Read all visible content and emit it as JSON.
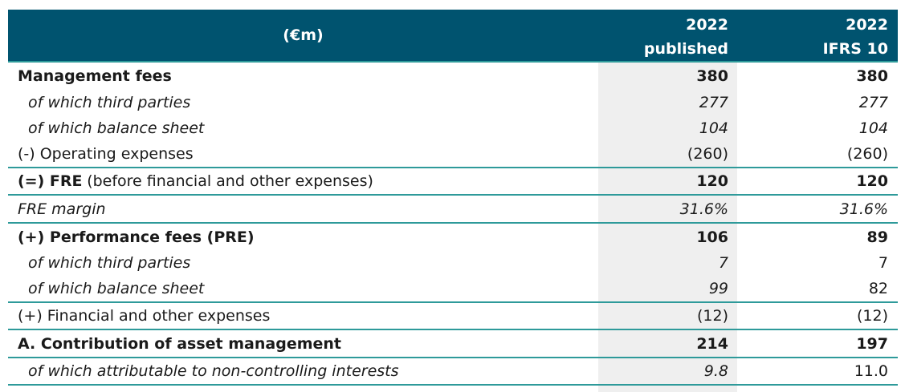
{
  "table": {
    "header": {
      "unit": "(€m)",
      "columns": [
        [
          "2022",
          "published"
        ],
        [
          "2022",
          "IFRS 10"
        ]
      ]
    },
    "rows": [
      {
        "label": "Management fees",
        "values": [
          "380",
          "380"
        ]
      },
      {
        "label": "of which third parties",
        "values": [
          "277",
          "277"
        ]
      },
      {
        "label": "of which balance sheet",
        "values": [
          "104",
          "104"
        ]
      },
      {
        "label": "(-) Operating expenses",
        "values": [
          "(260)",
          "(260)"
        ]
      },
      {
        "label_bold": "(=) FRE",
        "label": "(before financial and other expenses)",
        "values": [
          "120",
          "120"
        ]
      },
      {
        "label": "FRE margin",
        "values": [
          "31.6%",
          "31.6%"
        ]
      },
      {
        "label": "(+) Performance fees (PRE)",
        "values": [
          "106",
          "89"
        ]
      },
      {
        "label": "of which third parties",
        "values": [
          "7",
          "7"
        ]
      },
      {
        "label": "of which balance sheet",
        "values": [
          "99",
          "82"
        ]
      },
      {
        "label": "(+) Financial and other expenses",
        "values": [
          "(12)",
          "(12)"
        ]
      },
      {
        "label": "A. Contribution of asset management",
        "values": [
          "214",
          "197"
        ]
      },
      {
        "label": "of which attributable to non-controlling interests",
        "values": [
          "9.8",
          "11.0"
        ]
      }
    ]
  }
}
